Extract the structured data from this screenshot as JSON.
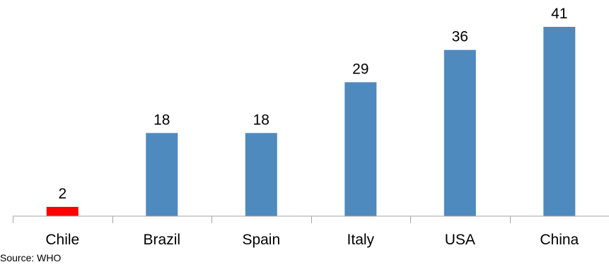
{
  "chart_data": {
    "type": "bar",
    "categories": [
      "Chile",
      "Brazil",
      "Spain",
      "Italy",
      "USA",
      "China"
    ],
    "values": [
      2,
      18,
      18,
      29,
      36,
      41
    ],
    "data_labels": [
      "2",
      "18",
      "18",
      "29",
      "36",
      "41"
    ],
    "bar_colors": [
      "#ff0000",
      "#4f8abe",
      "#4f8abe",
      "#4f8abe",
      "#4f8abe",
      "#4f8abe"
    ],
    "title": "",
    "xlabel": "",
    "ylabel": "",
    "ylim": [
      0,
      41
    ],
    "grid": false,
    "legend": "none"
  },
  "footnote": {
    "source": "Source: WHO"
  },
  "colors": {
    "axis": "#a6a6a6",
    "highlight": "#ff0000",
    "bar": "#4f8abe"
  }
}
